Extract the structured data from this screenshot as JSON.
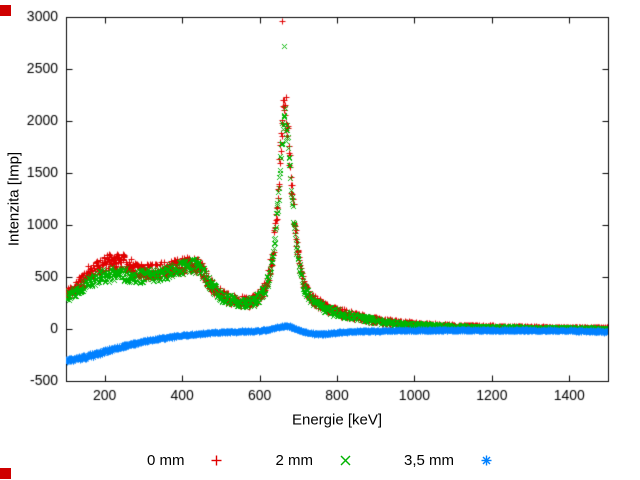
{
  "corner_markers": {
    "color": "#cf0000"
  },
  "chart_data": {
    "type": "scatter",
    "title": "",
    "xlabel": "Energie [keV]",
    "ylabel": "Intenzita [Imp]",
    "xlim": [
      100,
      1500
    ],
    "ylim": [
      -500,
      3000
    ],
    "xticks": [
      200,
      400,
      600,
      800,
      1000,
      1200,
      1400
    ],
    "yticks": [
      -500,
      0,
      500,
      1000,
      1500,
      2000,
      2500,
      3000
    ],
    "grid": false,
    "legend_position": "below",
    "axis_color": "#000000",
    "series": [
      {
        "name": "0 mm",
        "marker": "plus",
        "color": "#e00000",
        "seed": 11,
        "step": 1,
        "noise_sqrt": 3.1,
        "peak": {
          "center_keV": 662,
          "height_imp": 2160
        },
        "outliers": [
          [
            659,
            2965
          ]
        ],
        "control_points": [
          [
            100,
            340
          ],
          [
            120,
            390
          ],
          [
            140,
            460
          ],
          [
            160,
            540
          ],
          [
            180,
            590
          ],
          [
            200,
            625
          ],
          [
            215,
            650
          ],
          [
            230,
            655
          ],
          [
            245,
            645
          ],
          [
            260,
            615
          ],
          [
            280,
            580
          ],
          [
            300,
            558
          ],
          [
            320,
            556
          ],
          [
            340,
            565
          ],
          [
            360,
            580
          ],
          [
            380,
            598
          ],
          [
            400,
            612
          ],
          [
            415,
            622
          ],
          [
            430,
            625
          ],
          [
            445,
            600
          ],
          [
            455,
            545
          ],
          [
            465,
            480
          ],
          [
            475,
            420
          ],
          [
            485,
            375
          ],
          [
            495,
            345
          ],
          [
            510,
            310
          ],
          [
            525,
            290
          ],
          [
            540,
            277
          ],
          [
            555,
            268
          ],
          [
            570,
            265
          ],
          [
            585,
            278
          ],
          [
            600,
            318
          ],
          [
            612,
            390
          ],
          [
            622,
            500
          ],
          [
            632,
            700
          ],
          [
            640,
            950
          ],
          [
            646,
            1250
          ],
          [
            652,
            1600
          ],
          [
            656,
            1880
          ],
          [
            660,
            2090
          ],
          [
            663,
            2160
          ],
          [
            666,
            2130
          ],
          [
            670,
            2000
          ],
          [
            675,
            1780
          ],
          [
            681,
            1470
          ],
          [
            688,
            1130
          ],
          [
            695,
            850
          ],
          [
            702,
            640
          ],
          [
            710,
            490
          ],
          [
            720,
            385
          ],
          [
            730,
            320
          ],
          [
            742,
            272
          ],
          [
            755,
            238
          ],
          [
            770,
            208
          ],
          [
            790,
            178
          ],
          [
            810,
            158
          ],
          [
            835,
            135
          ],
          [
            860,
            115
          ],
          [
            890,
            92
          ],
          [
            920,
            76
          ],
          [
            950,
            62
          ],
          [
            980,
            52
          ],
          [
            1010,
            45
          ],
          [
            1050,
            37
          ],
          [
            1100,
            30
          ],
          [
            1150,
            25
          ],
          [
            1200,
            21
          ],
          [
            1260,
            17
          ],
          [
            1320,
            14
          ],
          [
            1380,
            12
          ],
          [
            1440,
            10
          ],
          [
            1500,
            9
          ]
        ]
      },
      {
        "name": "2 mm",
        "marker": "cross",
        "color": "#00b400",
        "seed": 22,
        "step": 1,
        "noise_sqrt": 3.0,
        "peak": {
          "center_keV": 662,
          "height_imp": 2020
        },
        "outliers": [
          [
            662,
            2725
          ]
        ],
        "control_points": [
          [
            100,
            315
          ],
          [
            120,
            360
          ],
          [
            140,
            415
          ],
          [
            160,
            460
          ],
          [
            180,
            495
          ],
          [
            200,
            515
          ],
          [
            220,
            525
          ],
          [
            240,
            528
          ],
          [
            260,
            522
          ],
          [
            280,
            512
          ],
          [
            300,
            508
          ],
          [
            320,
            515
          ],
          [
            340,
            530
          ],
          [
            360,
            550
          ],
          [
            380,
            572
          ],
          [
            400,
            592
          ],
          [
            415,
            605
          ],
          [
            430,
            610
          ],
          [
            445,
            588
          ],
          [
            455,
            535
          ],
          [
            465,
            470
          ],
          [
            475,
            410
          ],
          [
            485,
            365
          ],
          [
            495,
            335
          ],
          [
            510,
            300
          ],
          [
            525,
            280
          ],
          [
            540,
            267
          ],
          [
            555,
            258
          ],
          [
            570,
            255
          ],
          [
            585,
            268
          ],
          [
            600,
            305
          ],
          [
            612,
            372
          ],
          [
            622,
            475
          ],
          [
            632,
            660
          ],
          [
            640,
            890
          ],
          [
            646,
            1170
          ],
          [
            652,
            1500
          ],
          [
            656,
            1760
          ],
          [
            660,
            1950
          ],
          [
            663,
            2020
          ],
          [
            666,
            1990
          ],
          [
            670,
            1870
          ],
          [
            675,
            1660
          ],
          [
            681,
            1370
          ],
          [
            688,
            1050
          ],
          [
            695,
            790
          ],
          [
            702,
            595
          ],
          [
            710,
            455
          ],
          [
            720,
            360
          ],
          [
            730,
            300
          ],
          [
            742,
            255
          ],
          [
            755,
            222
          ],
          [
            770,
            195
          ],
          [
            790,
            167
          ],
          [
            810,
            148
          ],
          [
            835,
            126
          ],
          [
            860,
            107
          ],
          [
            890,
            86
          ],
          [
            920,
            70
          ],
          [
            950,
            57
          ],
          [
            980,
            48
          ],
          [
            1010,
            41
          ],
          [
            1050,
            34
          ],
          [
            1100,
            27
          ],
          [
            1150,
            23
          ],
          [
            1200,
            19
          ],
          [
            1260,
            15
          ],
          [
            1320,
            12
          ],
          [
            1380,
            10
          ],
          [
            1440,
            9
          ],
          [
            1500,
            8
          ]
        ]
      },
      {
        "name": "3,5 mm",
        "marker": "asterisk",
        "color": "#0080ff",
        "seed": 33,
        "step": 1,
        "noise_base": 9,
        "noise_rel": 0.045,
        "control_points": [
          [
            100,
            -302
          ],
          [
            125,
            -288
          ],
          [
            150,
            -268
          ],
          [
            175,
            -242
          ],
          [
            200,
            -215
          ],
          [
            230,
            -182
          ],
          [
            260,
            -152
          ],
          [
            290,
            -126
          ],
          [
            320,
            -104
          ],
          [
            350,
            -86
          ],
          [
            380,
            -70
          ],
          [
            410,
            -57
          ],
          [
            440,
            -47
          ],
          [
            470,
            -38
          ],
          [
            500,
            -31
          ],
          [
            530,
            -26
          ],
          [
            560,
            -23
          ],
          [
            590,
            -19
          ],
          [
            615,
            -10
          ],
          [
            635,
            6
          ],
          [
            652,
            24
          ],
          [
            665,
            32
          ],
          [
            678,
            24
          ],
          [
            692,
            6
          ],
          [
            706,
            -14
          ],
          [
            722,
            -32
          ],
          [
            740,
            -44
          ],
          [
            760,
            -46
          ],
          [
            785,
            -38
          ],
          [
            810,
            -30
          ],
          [
            840,
            -24
          ],
          [
            880,
            -18
          ],
          [
            920,
            -15
          ],
          [
            960,
            -13
          ],
          [
            1000,
            -12
          ],
          [
            1080,
            -10
          ],
          [
            1160,
            -11
          ],
          [
            1240,
            -12
          ],
          [
            1320,
            -12
          ],
          [
            1400,
            -14
          ],
          [
            1450,
            -18
          ],
          [
            1500,
            -26
          ]
        ]
      }
    ]
  }
}
